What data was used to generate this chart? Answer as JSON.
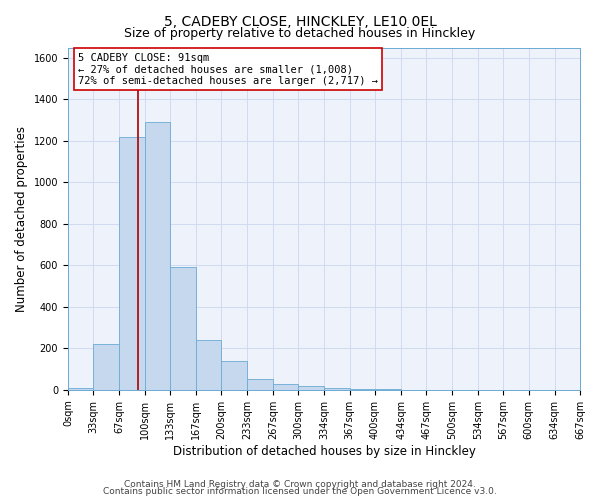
{
  "title_line1": "5, CADEBY CLOSE, HINCKLEY, LE10 0EL",
  "title_line2": "Size of property relative to detached houses in Hinckley",
  "xlabel": "Distribution of detached houses by size in Hinckley",
  "ylabel": "Number of detached properties",
  "bin_edges": [
    0,
    33,
    67,
    100,
    133,
    167,
    200,
    233,
    267,
    300,
    334,
    367,
    400,
    434,
    467,
    500,
    534,
    567,
    600,
    634,
    667
  ],
  "bar_heights": [
    10,
    220,
    1220,
    1290,
    590,
    240,
    140,
    50,
    28,
    20,
    10,
    5,
    3,
    0,
    0,
    0,
    0,
    0,
    0,
    0
  ],
  "bar_color": "#c5d8ee",
  "bar_edge_color": "#6aaad4",
  "property_size": 91,
  "vline_color": "#aa0000",
  "annotation_text": "5 CADEBY CLOSE: 91sqm\n← 27% of detached houses are smaller (1,008)\n72% of semi-detached houses are larger (2,717) →",
  "annotation_box_color": "#ffffff",
  "annotation_box_edge": "#cc0000",
  "ylim": [
    0,
    1650
  ],
  "yticks": [
    0,
    200,
    400,
    600,
    800,
    1000,
    1200,
    1400,
    1600
  ],
  "footer_line1": "Contains HM Land Registry data © Crown copyright and database right 2024.",
  "footer_line2": "Contains public sector information licensed under the Open Government Licence v3.0.",
  "background_color": "#ffffff",
  "plot_bg_color": "#eef2fb",
  "grid_color": "#d0daf0",
  "title_fontsize": 10,
  "subtitle_fontsize": 9,
  "axis_label_fontsize": 8.5,
  "tick_fontsize": 7,
  "annotation_fontsize": 7.5,
  "footer_fontsize": 6.5
}
